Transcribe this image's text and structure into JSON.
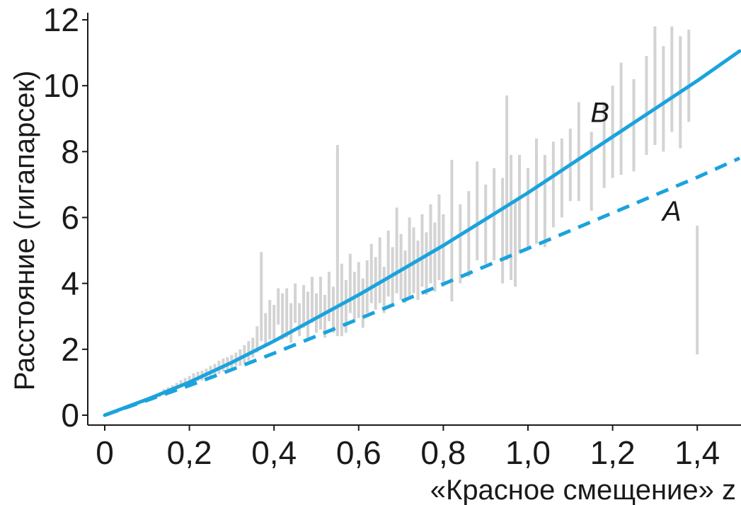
{
  "chart_data": {
    "type": "line",
    "xlabel": "«Красное смещение» z",
    "ylabel": "Расстояние (гигапарсек)",
    "xlim": [
      -0.05,
      1.52
    ],
    "ylim": [
      -0.3,
      12.3
    ],
    "x_ticks": [
      0,
      0.2,
      0.4,
      0.6,
      0.8,
      1.0,
      1.2,
      1.4
    ],
    "x_tick_labels": [
      "0",
      "0,2",
      "0,4",
      "0,6",
      "0,8",
      "1,0",
      "1,2",
      "1,4"
    ],
    "y_ticks": [
      0,
      2,
      4,
      6,
      8,
      10,
      12
    ],
    "y_tick_labels": [
      "0",
      "2",
      "4",
      "6",
      "8",
      "10",
      "12"
    ],
    "grid": false,
    "series": [
      {
        "name": "B",
        "style": "solid",
        "color": "#1aa3dd",
        "label_at": [
          1.17,
          8.9
        ],
        "x": [
          0,
          0.1,
          0.2,
          0.3,
          0.4,
          0.5,
          0.6,
          0.7,
          0.8,
          0.9,
          1.0,
          1.1,
          1.2,
          1.3,
          1.4,
          1.5
        ],
        "y": [
          0,
          0.48,
          1.0,
          1.6,
          2.25,
          2.95,
          3.65,
          4.4,
          5.15,
          5.95,
          6.75,
          7.6,
          8.45,
          9.3,
          10.15,
          11.05
        ]
      },
      {
        "name": "A",
        "style": "dashed",
        "color": "#1aa3dd",
        "label_at": [
          1.34,
          5.9
        ],
        "x": [
          0,
          0.1,
          0.2,
          0.3,
          0.4,
          0.5,
          0.6,
          0.7,
          0.8,
          0.9,
          1.0,
          1.1,
          1.2,
          1.3,
          1.4,
          1.5
        ],
        "y": [
          0,
          0.45,
          0.9,
          1.38,
          1.88,
          2.4,
          2.92,
          3.45,
          3.98,
          4.52,
          5.06,
          5.6,
          6.14,
          6.68,
          7.22,
          7.8
        ]
      }
    ],
    "observations": {
      "color": "#d3d3d3",
      "points": [
        [
          0.03,
          0.1,
          0.05
        ],
        [
          0.05,
          0.22,
          0.08
        ],
        [
          0.07,
          0.33,
          0.08
        ],
        [
          0.09,
          0.42,
          0.1
        ],
        [
          0.11,
          0.5,
          0.12
        ],
        [
          0.13,
          0.62,
          0.14
        ],
        [
          0.14,
          0.7,
          0.18
        ],
        [
          0.15,
          0.78,
          0.14
        ],
        [
          0.16,
          0.82,
          0.18
        ],
        [
          0.17,
          0.88,
          0.2
        ],
        [
          0.18,
          0.95,
          0.22
        ],
        [
          0.19,
          1.0,
          0.25
        ],
        [
          0.2,
          1.08,
          0.22
        ],
        [
          0.21,
          1.12,
          0.3
        ],
        [
          0.22,
          1.18,
          0.28
        ],
        [
          0.23,
          1.2,
          0.3
        ],
        [
          0.24,
          1.25,
          0.32
        ],
        [
          0.25,
          1.32,
          0.35
        ],
        [
          0.26,
          1.38,
          0.35
        ],
        [
          0.27,
          1.45,
          0.4
        ],
        [
          0.28,
          1.52,
          0.4
        ],
        [
          0.29,
          1.55,
          0.42
        ],
        [
          0.3,
          1.6,
          0.45
        ],
        [
          0.31,
          1.7,
          0.4
        ],
        [
          0.32,
          1.75,
          0.5
        ],
        [
          0.33,
          1.85,
          0.55
        ],
        [
          0.34,
          1.95,
          0.6
        ],
        [
          0.35,
          2.05,
          0.6
        ],
        [
          0.36,
          2.3,
          0.8
        ],
        [
          0.37,
          3.6,
          2.7
        ],
        [
          0.38,
          2.6,
          1.0
        ],
        [
          0.39,
          2.9,
          1.2
        ],
        [
          0.4,
          2.8,
          1.1
        ],
        [
          0.41,
          3.3,
          1.1
        ],
        [
          0.42,
          3.0,
          1.4
        ],
        [
          0.43,
          3.1,
          1.5
        ],
        [
          0.44,
          2.8,
          1.2
        ],
        [
          0.45,
          3.4,
          1.2
        ],
        [
          0.46,
          2.9,
          1.0
        ],
        [
          0.47,
          3.3,
          1.3
        ],
        [
          0.48,
          3.0,
          1.5
        ],
        [
          0.49,
          3.5,
          1.4
        ],
        [
          0.5,
          3.1,
          1.2
        ],
        [
          0.51,
          3.4,
          1.6
        ],
        [
          0.52,
          3.0,
          1.3
        ],
        [
          0.53,
          3.6,
          1.5
        ],
        [
          0.54,
          3.2,
          1.4
        ],
        [
          0.55,
          5.3,
          5.8
        ],
        [
          0.56,
          3.5,
          2.2
        ],
        [
          0.57,
          3.3,
          1.6
        ],
        [
          0.58,
          4.0,
          1.8
        ],
        [
          0.59,
          3.6,
          1.5
        ],
        [
          0.6,
          3.8,
          1.7
        ],
        [
          0.61,
          3.4,
          1.5
        ],
        [
          0.62,
          3.9,
          1.6
        ],
        [
          0.63,
          4.3,
          1.8
        ],
        [
          0.64,
          4.0,
          1.6
        ],
        [
          0.65,
          4.4,
          2.0
        ],
        [
          0.66,
          3.8,
          1.4
        ],
        [
          0.67,
          4.6,
          2.0
        ],
        [
          0.68,
          4.2,
          1.8
        ],
        [
          0.69,
          5.0,
          2.6
        ],
        [
          0.7,
          4.5,
          2.0
        ],
        [
          0.71,
          4.2,
          1.6
        ],
        [
          0.72,
          4.8,
          2.4
        ],
        [
          0.73,
          4.7,
          2.0
        ],
        [
          0.74,
          4.4,
          1.8
        ],
        [
          0.75,
          5.0,
          2.2
        ],
        [
          0.76,
          4.6,
          1.9
        ],
        [
          0.77,
          5.2,
          2.4
        ],
        [
          0.78,
          4.8,
          2.1
        ],
        [
          0.79,
          5.4,
          2.6
        ],
        [
          0.8,
          5.0,
          2.2
        ],
        [
          0.82,
          5.6,
          4.3
        ],
        [
          0.84,
          5.2,
          2.4
        ],
        [
          0.86,
          5.5,
          2.6
        ],
        [
          0.88,
          6.2,
          3.0
        ],
        [
          0.9,
          5.8,
          2.4
        ],
        [
          0.92,
          6.1,
          2.8
        ],
        [
          0.94,
          5.6,
          3.2
        ],
        [
          0.95,
          7.2,
          5.0
        ],
        [
          0.96,
          6.0,
          3.8
        ],
        [
          0.97,
          5.2,
          2.6
        ],
        [
          0.98,
          6.4,
          3.0
        ],
        [
          1.0,
          6.3,
          2.4
        ],
        [
          1.02,
          6.8,
          3.2
        ],
        [
          1.04,
          6.5,
          2.8
        ],
        [
          1.06,
          7.0,
          2.6
        ],
        [
          1.08,
          7.2,
          2.4
        ],
        [
          1.1,
          7.6,
          2.2
        ],
        [
          1.12,
          8.0,
          3.0
        ],
        [
          1.15,
          7.4,
          2.4
        ],
        [
          1.18,
          8.2,
          2.6
        ],
        [
          1.2,
          8.6,
          2.8
        ],
        [
          1.22,
          9.0,
          3.4
        ],
        [
          1.25,
          8.8,
          2.8
        ],
        [
          1.28,
          9.4,
          3.0
        ],
        [
          1.3,
          10.0,
          3.6
        ],
        [
          1.32,
          9.6,
          3.2
        ],
        [
          1.34,
          10.2,
          3.2
        ],
        [
          1.36,
          9.8,
          3.4
        ],
        [
          1.38,
          10.3,
          2.8
        ],
        [
          1.4,
          3.8,
          3.9
        ]
      ]
    }
  }
}
